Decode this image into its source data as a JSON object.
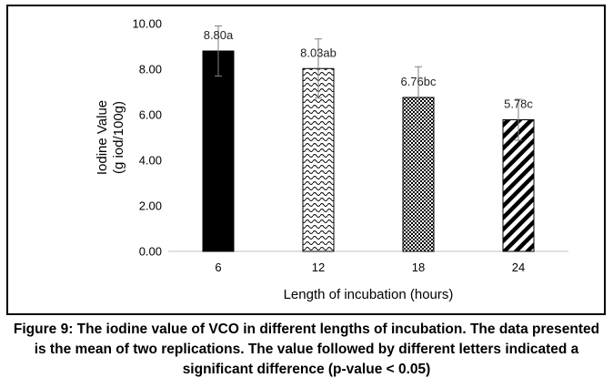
{
  "chart_data": {
    "type": "bar",
    "categories": [
      "6",
      "12",
      "18",
      "24"
    ],
    "values": [
      8.8,
      8.03,
      6.76,
      5.78
    ],
    "errors": [
      1.1,
      1.3,
      1.35,
      0.9
    ],
    "data_labels": [
      "8.80a",
      "8.03ab",
      "6.76bc",
      "5.78c"
    ],
    "patterns": [
      "solid",
      "wave",
      "dots",
      "diagonal"
    ],
    "xlabel": "Length of incubation (hours)",
    "ylabel_line1": "Iodine Value",
    "ylabel_line2": "(g iod/100g)",
    "yticks": [
      "0.00",
      "2.00",
      "4.00",
      "6.00",
      "8.00",
      "10.00"
    ],
    "ylim": [
      0,
      10
    ],
    "grid": false,
    "bar_color": "#000000"
  },
  "caption": {
    "line1": "Figure 9: The iodine value of VCO in different lengths of incubation. The data presented",
    "line2": "is the mean of two replications. The value followed by different letters indicated a",
    "line3": "significant difference (p-value < 0.05)"
  }
}
